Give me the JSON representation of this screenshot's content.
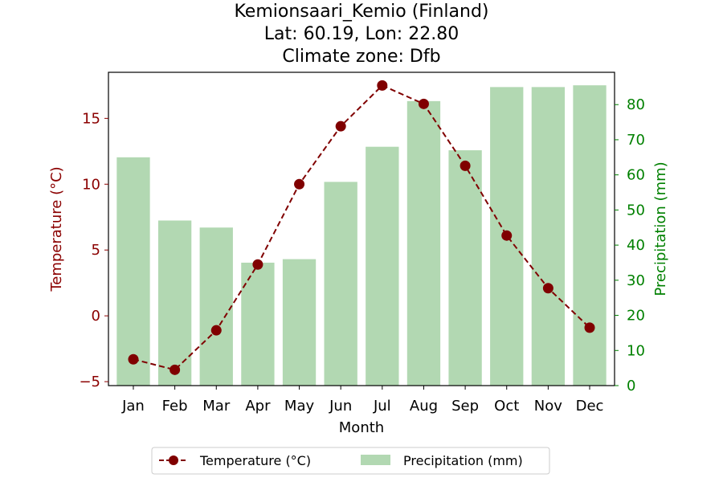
{
  "chart_data": {
    "type": "bar+line",
    "title": [
      "Kemionsaari_Kemio (Finland)",
      "Lat: 60.19, Lon: 22.80",
      "Climate zone: Dfb"
    ],
    "xlabel": "Month",
    "ylabel_left": "Temperature (°C)",
    "ylabel_right": "Precipitation (mm)",
    "categories": [
      "Jan",
      "Feb",
      "Mar",
      "Apr",
      "May",
      "Jun",
      "Jul",
      "Aug",
      "Sep",
      "Oct",
      "Nov",
      "Dec"
    ],
    "temperature": {
      "name": "Temperature (°C)",
      "values": [
        -3.3,
        -4.1,
        -1.1,
        3.9,
        10.0,
        14.4,
        17.5,
        16.1,
        11.4,
        6.1,
        2.1,
        -0.9
      ],
      "color": "#800000",
      "axis": "left",
      "style": "dashed line with circle markers"
    },
    "precipitation": {
      "name": "Precipitation (mm)",
      "values": [
        65,
        47,
        45,
        35,
        36,
        58,
        68,
        81,
        67,
        85,
        85,
        85.5
      ],
      "color": "#b2d8b2",
      "axis": "right"
    },
    "y_left": {
      "lim": [
        -5.3,
        18.5
      ],
      "ticks": [
        -5,
        0,
        5,
        10,
        15
      ],
      "tick_labels": [
        "−5",
        "0",
        "5",
        "10",
        "15"
      ],
      "color": "#8b0000"
    },
    "y_right": {
      "lim": [
        0,
        89.2
      ],
      "ticks": [
        0,
        10,
        20,
        30,
        40,
        50,
        60,
        70,
        80
      ],
      "tick_labels": [
        "0",
        "10",
        "20",
        "30",
        "40",
        "50",
        "60",
        "70",
        "80"
      ],
      "color": "#008000"
    },
    "legend": {
      "placement": "bottom-center",
      "entries": [
        "Temperature (°C)",
        "Precipitation (mm)"
      ]
    },
    "grid": false
  }
}
